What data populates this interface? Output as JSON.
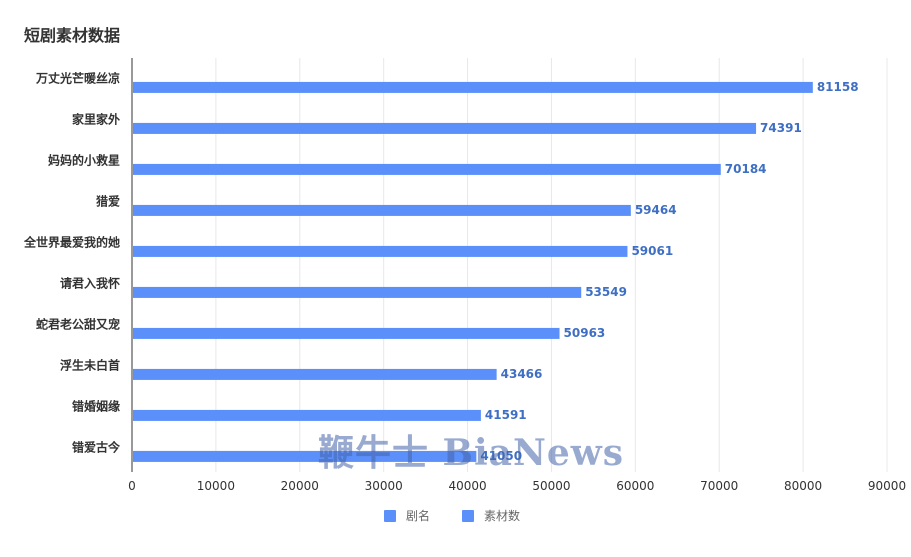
{
  "chart_data": {
    "type": "bar",
    "orientation": "horizontal",
    "title": "短剧素材数据",
    "categories": [
      "万丈光芒暖丝凉",
      "家里家外",
      "妈妈的小救星",
      "猎爱",
      "全世界最爱我的她",
      "请君入我怀",
      "蛇君老公甜又宠",
      "浮生未白首",
      "错婚姻缘",
      "错爱古今"
    ],
    "series": [
      {
        "name": "素材数",
        "values": [
          81158,
          74391,
          70184,
          59464,
          59061,
          53549,
          50963,
          43466,
          41591,
          41050
        ]
      }
    ],
    "x_ticks": [
      "0",
      "10000",
      "20000",
      "30000",
      "40000",
      "50000",
      "60000",
      "70000",
      "80000",
      "90000"
    ],
    "xlim": [
      0,
      90000
    ],
    "grid": true,
    "legend_position": "bottom",
    "legend": [
      "剧名",
      "素材数"
    ],
    "colors": {
      "bar": "#5B8FF9",
      "label": "#3E6FC4",
      "grid": "#E8E8E8",
      "legend_name": "#5B8FF9",
      "legend_value": "#5B8FF9"
    }
  },
  "watermark": "鞭牛士 BiaNews"
}
